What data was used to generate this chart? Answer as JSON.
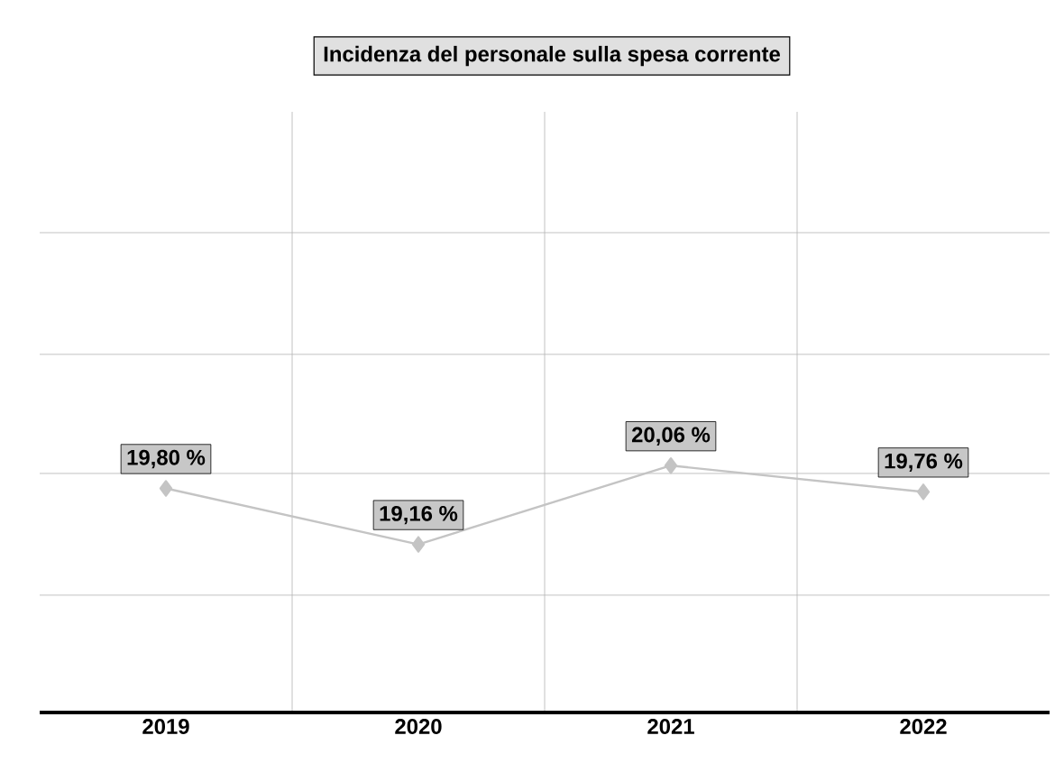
{
  "chart_data": {
    "type": "line",
    "title": "Incidenza del personale sulla spesa corrente",
    "categories": [
      "2019",
      "2020",
      "2021",
      "2022"
    ],
    "values": [
      19.8,
      19.16,
      20.06,
      19.76
    ],
    "value_labels": [
      "19,80 %",
      "19,16 %",
      "20,06 %",
      "19,76 %"
    ],
    "color": "#c4c4c4",
    "marker": "diamond",
    "ylim": [
      17.24,
      24.1
    ],
    "yticks": [
      {
        "value": 18.58,
        "label": null
      },
      {
        "value": 19.97,
        "label": null
      },
      {
        "value": 21.33,
        "label": null
      },
      {
        "value": 22.72,
        "label": null
      }
    ],
    "grid": true,
    "tick_labels": "x"
  }
}
